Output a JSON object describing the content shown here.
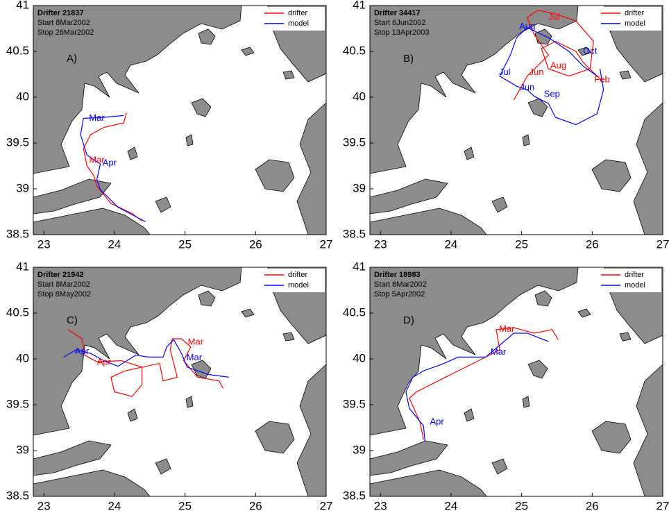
{
  "chart_data": [
    {
      "type": "line",
      "title": "Drifter 21837",
      "start": "Start 8Mar2002",
      "stop": "Stop 26Mar2002",
      "panel_label": "A)",
      "xlim": [
        22.85,
        27
      ],
      "ylim": [
        38.5,
        41
      ],
      "xticks": [
        23,
        24,
        25,
        26,
        27
      ],
      "yticks": [
        38.5,
        39,
        39.5,
        40,
        40.5,
        41
      ],
      "legend": "upper right",
      "series": [
        {
          "name": "drifter",
          "color": "#ff0000",
          "x": [
            24.17,
            24.13,
            23.85,
            23.66,
            23.56,
            23.61,
            23.71,
            23.75,
            23.95,
            24.25,
            24.39
          ],
          "values": [
            39.83,
            39.72,
            39.67,
            39.59,
            39.44,
            39.25,
            39.14,
            39.03,
            38.84,
            38.73,
            38.65
          ]
        },
        {
          "name": "model",
          "color": "#0000ff",
          "x": [
            24.13,
            23.85,
            23.56,
            23.52,
            23.61,
            23.8,
            23.75,
            23.8,
            24.05,
            24.44
          ],
          "values": [
            39.8,
            39.78,
            39.77,
            39.59,
            39.37,
            39.27,
            39.1,
            38.99,
            38.8,
            38.64
          ]
        }
      ],
      "annotations": [
        {
          "text": "Mar",
          "color": "#0000ff",
          "x": 23.75,
          "y": 39.77
        },
        {
          "text": "Mar",
          "color": "#ff0000",
          "x": 23.75,
          "y": 39.31
        },
        {
          "text": "Apr",
          "color": "#0000ff",
          "x": 23.93,
          "y": 39.28
        }
      ]
    },
    {
      "type": "line",
      "title": "Drifter 34417",
      "start": "Start 6Jun2002",
      "stop": "Stop 13Apr2003",
      "panel_label": "B)",
      "xlim": [
        22.85,
        27
      ],
      "ylim": [
        38.5,
        41
      ],
      "xticks": [
        23,
        24,
        25,
        26,
        27
      ],
      "yticks": [
        38.5,
        39,
        39.5,
        40,
        40.5,
        41
      ],
      "legend": "upper right",
      "series": [
        {
          "name": "drifter",
          "color": "#ff0000",
          "x": [
            24.89,
            25.08,
            25.38,
            25.18,
            25.08,
            25.23,
            25.48,
            25.77,
            26.02,
            25.97,
            25.67,
            25.38,
            25.28,
            25.48,
            25.77,
            25.87,
            26.07,
            26.16
          ],
          "values": [
            39.97,
            40.23,
            40.46,
            40.68,
            40.87,
            40.95,
            40.91,
            40.83,
            40.61,
            40.31,
            40.23,
            40.31,
            40.53,
            40.61,
            40.5,
            40.38,
            40.23,
            40.16
          ]
        },
        {
          "name": "model",
          "color": "#0000ff",
          "x": [
            26.07,
            25.87,
            25.67,
            25.38,
            25.08,
            24.93,
            24.84,
            24.69,
            24.93,
            25.08,
            25.18,
            25.38,
            25.48,
            25.77,
            26.07,
            26.16,
            26.11
          ],
          "values": [
            40.23,
            40.34,
            40.5,
            40.65,
            40.76,
            40.65,
            40.46,
            40.23,
            40.12,
            40.08,
            40.01,
            39.93,
            39.78,
            39.7,
            39.82,
            40.08,
            40.31
          ]
        }
      ],
      "annotations": [
        {
          "text": "Aug",
          "color": "#0000ff",
          "x": 25.08,
          "y": 40.77
        },
        {
          "text": "Jul",
          "color": "#ff0000",
          "x": 25.46,
          "y": 40.87
        },
        {
          "text": "Oct",
          "color": "#0000ff",
          "x": 25.97,
          "y": 40.5
        },
        {
          "text": "Jun",
          "color": "#ff0000",
          "x": 25.21,
          "y": 40.27
        },
        {
          "text": "Aug",
          "color": "#ff0000",
          "x": 25.52,
          "y": 40.34
        },
        {
          "text": "Jul",
          "color": "#0000ff",
          "x": 24.76,
          "y": 40.27
        },
        {
          "text": "Feb",
          "color": "#ff0000",
          "x": 26.14,
          "y": 40.19
        },
        {
          "text": "Jun",
          "color": "#0000ff",
          "x": 25.08,
          "y": 40.1
        },
        {
          "text": "Sep",
          "color": "#0000ff",
          "x": 25.43,
          "y": 40.03
        }
      ]
    },
    {
      "type": "line",
      "title": "Drifter 21942",
      "start": "Start 8Mar2002",
      "stop": "Stop 8May2002",
      "panel_label": "C)",
      "xlim": [
        22.85,
        27
      ],
      "ylim": [
        38.5,
        41
      ],
      "xticks": [
        23,
        24,
        25,
        26,
        27
      ],
      "yticks": [
        38.5,
        39,
        39.5,
        40,
        40.5,
        41
      ],
      "legend": "upper right",
      "series": [
        {
          "name": "drifter",
          "color": "#ff0000",
          "x": [
            23.34,
            23.54,
            23.58,
            23.75,
            24.1,
            24.39,
            24.39,
            24.25,
            24.0,
            23.95,
            24.15,
            24.64,
            24.69,
            24.89,
            24.79,
            24.82,
            24.95,
            25.08,
            24.98,
            25.18,
            25.48,
            25.54
          ],
          "values": [
            40.32,
            40.22,
            40.04,
            39.97,
            39.98,
            39.91,
            39.72,
            39.59,
            39.64,
            39.8,
            39.87,
            39.95,
            39.76,
            39.8,
            40.1,
            40.22,
            40.22,
            40.13,
            39.98,
            39.8,
            39.76,
            39.68
          ]
        },
        {
          "name": "model",
          "color": "#0000ff",
          "x": [
            23.28,
            23.46,
            23.66,
            23.85,
            24.05,
            24.3,
            24.49,
            24.69,
            24.74,
            24.84,
            24.95,
            25.03,
            25.33,
            25.62
          ],
          "values": [
            40.02,
            40.1,
            40.06,
            39.98,
            39.92,
            40.04,
            40.02,
            40.02,
            40.13,
            40.21,
            40.06,
            39.91,
            39.83,
            39.8
          ]
        }
      ],
      "annotations": [
        {
          "text": "Apr",
          "color": "#0000ff",
          "x": 23.54,
          "y": 40.08
        },
        {
          "text": "Apr",
          "color": "#ff0000",
          "x": 23.85,
          "y": 39.96
        },
        {
          "text": "Mar",
          "color": "#ff0000",
          "x": 25.15,
          "y": 40.18
        },
        {
          "text": "Mar",
          "color": "#0000ff",
          "x": 25.13,
          "y": 40.01
        }
      ]
    },
    {
      "type": "line",
      "title": "Drifter 18983",
      "start": "Start 8Mar2002",
      "stop": "Stop 5Apr2002",
      "panel_label": "D)",
      "xlim": [
        22.85,
        27
      ],
      "ylim": [
        38.5,
        41
      ],
      "xticks": [
        23,
        24,
        25,
        26,
        27
      ],
      "yticks": [
        38.5,
        39,
        39.5,
        40,
        40.5,
        41
      ],
      "legend": "upper right",
      "series": [
        {
          "name": "drifter",
          "color": "#ff0000",
          "x": [
            23.61,
            23.56,
            23.41,
            23.51,
            24.0,
            24.39,
            24.69,
            24.64,
            24.89,
            25.18,
            25.43,
            25.52
          ],
          "values": [
            39.12,
            39.31,
            39.57,
            39.64,
            39.83,
            39.98,
            40.1,
            40.32,
            40.34,
            40.28,
            40.32,
            40.21
          ]
        },
        {
          "name": "model",
          "color": "#0000ff",
          "x": [
            23.63,
            23.61,
            23.41,
            23.36,
            23.46,
            23.61,
            23.9,
            24.1,
            24.49,
            24.89,
            25.08,
            25.38
          ],
          "values": [
            39.1,
            39.27,
            39.46,
            39.64,
            39.8,
            39.87,
            39.95,
            40.02,
            40.02,
            40.28,
            40.28,
            40.19
          ]
        }
      ],
      "annotations": [
        {
          "text": "Mar",
          "color": "#ff0000",
          "x": 24.79,
          "y": 40.32
        },
        {
          "text": "Mar",
          "color": "#0000ff",
          "x": 24.67,
          "y": 40.07
        },
        {
          "text": "Apr",
          "color": "#0000ff",
          "x": 23.8,
          "y": 39.31
        }
      ]
    }
  ]
}
